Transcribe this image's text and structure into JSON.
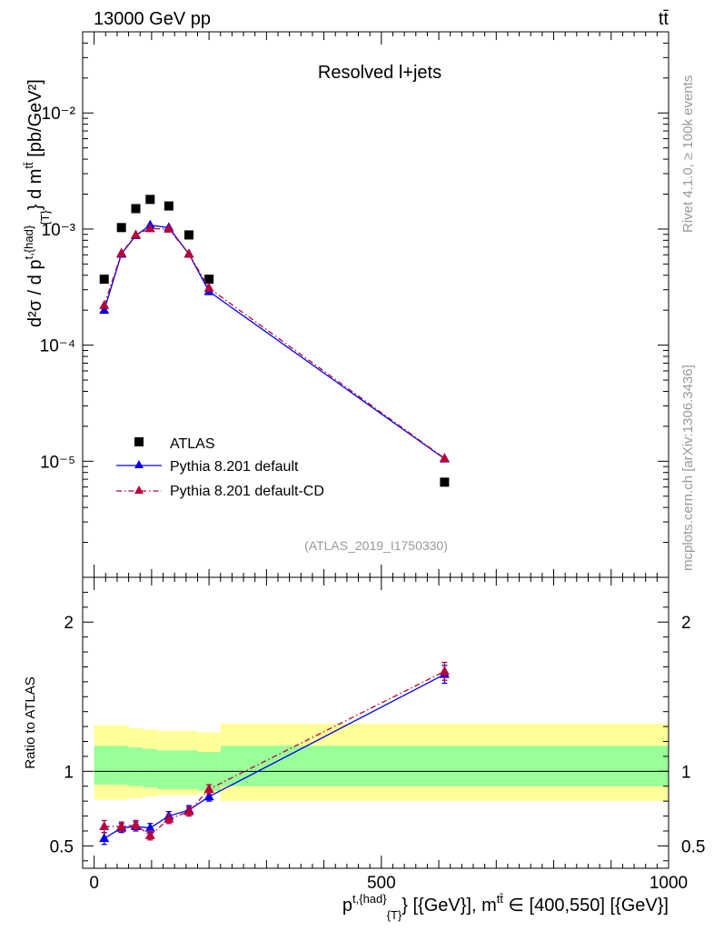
{
  "header": {
    "left": "13000 GeV pp",
    "right": "tt̄"
  },
  "side_labels": {
    "rivet": "Rivet 4.1.0, ≥ 100k events",
    "mcplots": "mcplots.cern.ch [arXiv:1306.3436]"
  },
  "chart_data": [
    {
      "type": "line",
      "panel": "main",
      "title": "Resolved l+jets",
      "analysis_id": "(ATLAS_2019_I1750330)",
      "ylabel_parts": {
        "prefix": "d²σ / d p",
        "sup1": "t,{had}",
        "sub1": "{T}",
        "mid": "} d m",
        "sup2": "tt̄",
        "suffix": " [pb/GeV²]"
      },
      "yscale": "log",
      "ylim": [
        1e-06,
        0.05
      ],
      "y_tick_labels": [
        "10⁻²",
        "10⁻³",
        "10⁻⁴",
        "10⁻⁵"
      ],
      "y_tick_values": [
        0.01,
        0.001,
        0.0001,
        1e-05
      ],
      "xlim": [
        -20,
        1000
      ],
      "legend_position": "bottom-left",
      "series": [
        {
          "name": "ATLAS",
          "marker": "square",
          "color": "#000000",
          "x": [
            17.5,
            47.5,
            72.5,
            97.5,
            130,
            165,
            200,
            610
          ],
          "y": [
            0.00037,
            0.00103,
            0.0015,
            0.0018,
            0.00158,
            0.00089,
            0.00037,
            6.6e-06
          ]
        },
        {
          "name": "Pythia 8.201 default",
          "marker": "triangle",
          "color": "#0000ee",
          "linestyle": "solid",
          "x": [
            17.5,
            47.5,
            72.5,
            97.5,
            130,
            165,
            200,
            610
          ],
          "y": [
            0.0002,
            0.00061,
            0.00088,
            0.00108,
            0.00103,
            0.00061,
            0.00029,
            1.05e-05
          ]
        },
        {
          "name": "Pythia 8.201 default-CD",
          "marker": "triangle",
          "color": "#b8003a",
          "linestyle": "dashdot",
          "x": [
            17.5,
            47.5,
            72.5,
            97.5,
            130,
            165,
            200,
            610
          ],
          "y": [
            0.00022,
            0.00062,
            0.00089,
            0.00101,
            0.001,
            0.00061,
            0.00031,
            1.06e-05
          ]
        }
      ]
    },
    {
      "type": "line",
      "panel": "ratio",
      "ylabel": "Ratio to ATLAS",
      "xlabel_parts": {
        "prefix": "p",
        "sup1": "t,{had}",
        "sub1": "{T}",
        "mid": "} [{GeV}], m",
        "sup2": "tt̄",
        "suffix": " ∈ [400,550] [{GeV}]"
      },
      "ylim": [
        0.35,
        2.3
      ],
      "y_tick_labels": [
        "2",
        "1",
        "0.5"
      ],
      "y_tick_values": [
        2,
        1,
        0.5
      ],
      "xlim": [
        -20,
        1000
      ],
      "x_tick_labels": [
        "0",
        "500",
        "1000"
      ],
      "x_tick_values": [
        0,
        500,
        1000
      ],
      "reference_line": 1,
      "bands": [
        {
          "name": "ATLAS total uncertainty",
          "color": "#ffff99",
          "edges": [
            0,
            35,
            60,
            85,
            110,
            150,
            180,
            220,
            1000
          ],
          "lo": [
            0.81,
            0.81,
            0.82,
            0.83,
            0.84,
            0.84,
            0.85,
            0.8
          ],
          "hi": [
            1.31,
            1.31,
            1.29,
            1.28,
            1.27,
            1.27,
            1.26,
            1.32
          ]
        },
        {
          "name": "ATLAS stat uncertainty",
          "color": "#99ff99",
          "edges": [
            0,
            35,
            60,
            85,
            110,
            150,
            180,
            220,
            1000
          ],
          "lo": [
            0.91,
            0.91,
            0.9,
            0.89,
            0.88,
            0.88,
            0.87,
            0.9
          ],
          "hi": [
            1.17,
            1.17,
            1.16,
            1.15,
            1.14,
            1.14,
            1.13,
            1.17
          ]
        }
      ],
      "series": [
        {
          "name": "Pythia 8.201 default",
          "color": "#0000ee",
          "linestyle": "solid",
          "x": [
            17.5,
            47.5,
            72.5,
            97.5,
            130,
            165,
            200,
            610
          ],
          "y": [
            0.55,
            0.62,
            0.63,
            0.62,
            0.7,
            0.74,
            0.83,
            1.65
          ],
          "err": [
            0.04,
            0.03,
            0.03,
            0.03,
            0.03,
            0.03,
            0.03,
            0.06
          ]
        },
        {
          "name": "Pythia 8.201 default-CD",
          "color": "#b8003a",
          "linestyle": "dashdot",
          "x": [
            17.5,
            47.5,
            72.5,
            97.5,
            130,
            165,
            200,
            610
          ],
          "y": [
            0.63,
            0.63,
            0.64,
            0.57,
            0.68,
            0.73,
            0.88,
            1.67
          ],
          "err": [
            0.04,
            0.03,
            0.03,
            0.03,
            0.03,
            0.03,
            0.03,
            0.06
          ]
        }
      ]
    }
  ]
}
